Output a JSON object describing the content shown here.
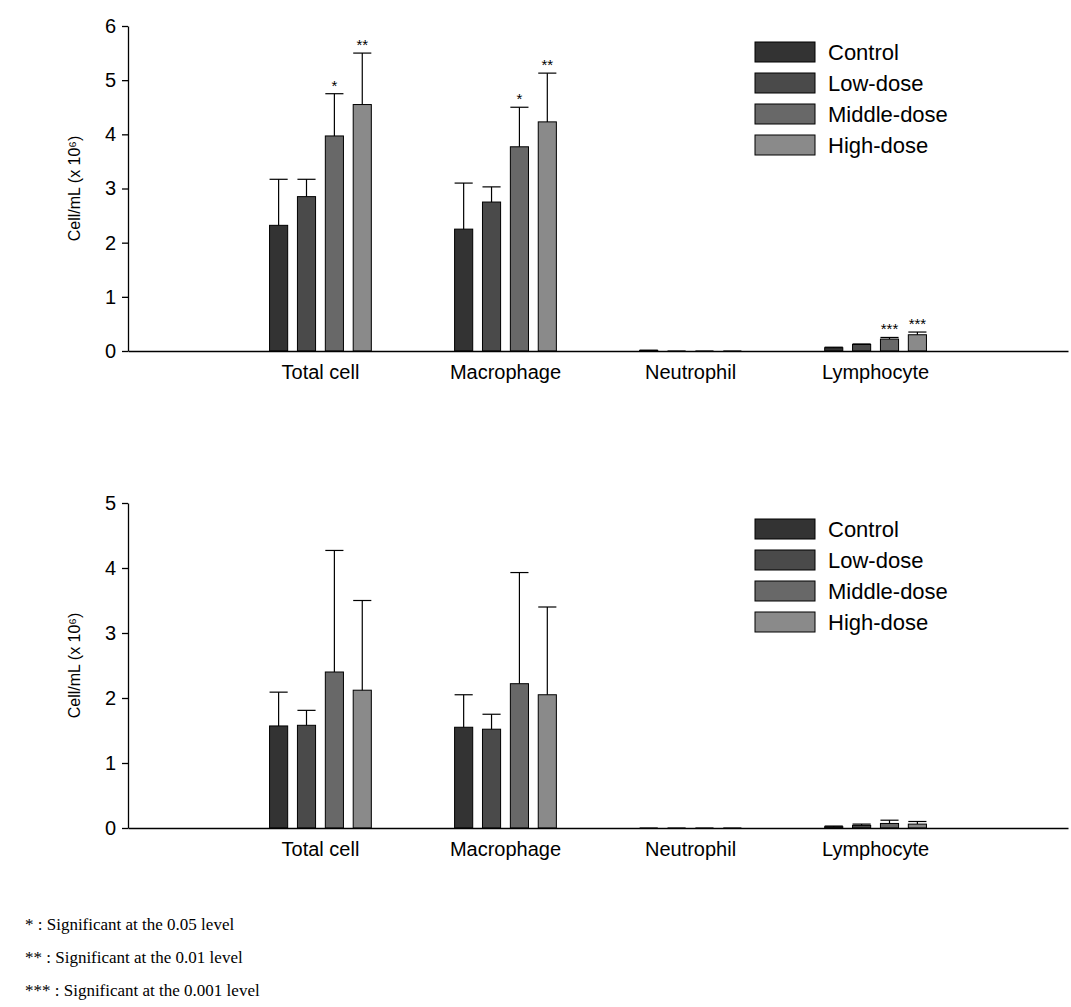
{
  "chart_data": [
    {
      "type": "bar",
      "categories": [
        "Total cell",
        "Macrophage",
        "Neutrophil",
        "Lymphocyte"
      ],
      "y_label": "Cell/mL (x 10⁶)",
      "ylim": [
        0,
        6
      ],
      "yticks": [
        0,
        1,
        2,
        3,
        4,
        5,
        6
      ],
      "grid": false,
      "legend": "upper right",
      "series": [
        {
          "name": "Control",
          "color": "#333333",
          "values": [
            2.32,
            2.25,
            0.01,
            0.06
          ],
          "errors": [
            0.85,
            0.85,
            0.005,
            0.01
          ],
          "significance": [
            null,
            null,
            null,
            null
          ]
        },
        {
          "name": "Low-dose",
          "color": "#4a4a4a",
          "values": [
            2.85,
            2.75,
            0,
            0.12
          ],
          "errors": [
            0.32,
            0.28,
            0,
            0.01
          ],
          "significance": [
            null,
            null,
            null,
            null
          ]
        },
        {
          "name": "Middle-dose",
          "color": "#686868",
          "values": [
            3.97,
            3.77,
            0,
            0.22
          ],
          "errors": [
            0.78,
            0.73,
            0,
            0.03
          ],
          "significance": [
            "*",
            "*",
            null,
            "***"
          ]
        },
        {
          "name": "High-dose",
          "color": "#8a8a8a",
          "values": [
            4.55,
            4.23,
            0,
            0.3
          ],
          "errors": [
            0.95,
            0.9,
            0,
            0.05
          ],
          "significance": [
            "**",
            "**",
            null,
            "***"
          ]
        }
      ]
    },
    {
      "type": "bar",
      "categories": [
        "Total cell",
        "Macrophage",
        "Neutrophil",
        "Lymphocyte"
      ],
      "y_label": "Cell/mL (x 10⁶)",
      "ylim": [
        0,
        5
      ],
      "yticks": [
        0,
        1,
        2,
        3,
        4,
        5
      ],
      "grid": false,
      "legend": "upper right",
      "series": [
        {
          "name": "Control",
          "color": "#333333",
          "values": [
            1.57,
            1.55,
            0,
            0.02
          ],
          "errors": [
            0.52,
            0.5,
            0,
            0.01
          ]
        },
        {
          "name": "Low-dose",
          "color": "#4a4a4a",
          "values": [
            1.58,
            1.52,
            0,
            0.04
          ],
          "errors": [
            0.23,
            0.23,
            0,
            0.02
          ]
        },
        {
          "name": "Middle-dose",
          "color": "#686868",
          "values": [
            2.4,
            2.22,
            0,
            0.07
          ],
          "errors": [
            1.87,
            1.71,
            0,
            0.05
          ]
        },
        {
          "name": "High-dose",
          "color": "#8a8a8a",
          "values": [
            2.12,
            2.05,
            0,
            0.06
          ],
          "errors": [
            1.38,
            1.35,
            0,
            0.04
          ]
        }
      ]
    }
  ],
  "footnotes": [
    "* : Significant at the 0.05 level",
    "** : Significant at the 0.01 level",
    "*** : Significant at the 0.001 level"
  ]
}
